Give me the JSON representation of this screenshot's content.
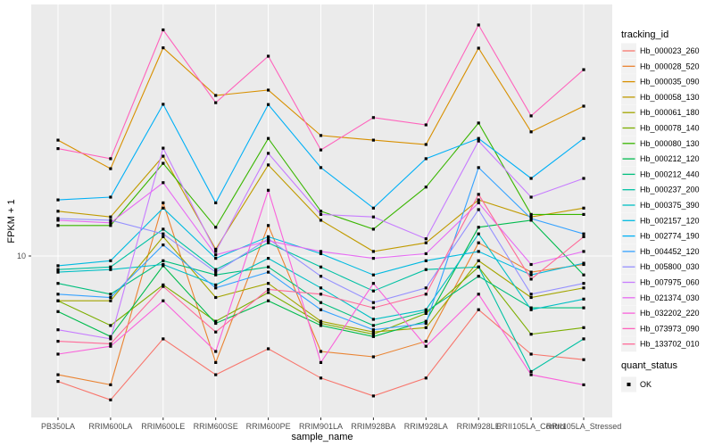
{
  "figure": {
    "background": "#FFFFFF",
    "panel_background": "#EBEBEB",
    "grid_color": "#FFFFFF",
    "axis_text_color": "#4D4D4D",
    "tick_color": "#333333",
    "marker_color": "#000000"
  },
  "axes": {
    "x_title": "sample_name",
    "y_title": "FPKM + 1",
    "y_tick_labels": [
      "10"
    ],
    "y_scale": "log10"
  },
  "legend": {
    "tracking_title": "tracking_id",
    "quant_title": "quant_status",
    "quant_items": [
      {
        "label": "OK",
        "marker": "black-square"
      }
    ],
    "key_fill": "#F2F2F2"
  },
  "chart_data": {
    "type": "line",
    "title": "",
    "xlabel": "sample_name",
    "ylabel": "FPKM + 1",
    "y_scale": "log10",
    "y_breaks": [
      10
    ],
    "grid": "major-on",
    "legend_position": "right",
    "point_marker": "small-black-square",
    "categories": [
      "PB350LA",
      "RRIM600LA",
      "RRIM600LE",
      "RRIM600SE",
      "RRIM600PE",
      "RRIM901LA",
      "RRIM928BA",
      "RRIM928LA",
      "RRIM928LE",
      "RRII105LA_Control",
      "RRII105LA_Stressed"
    ],
    "series": [
      {
        "name": "Hb_000023_260",
        "color": "#F8766D",
        "values": [
          3.4,
          2.9,
          4.9,
          3.6,
          4.5,
          3.5,
          3.0,
          3.5,
          6.3,
          4.3,
          4.1
        ]
      },
      {
        "name": "Hb_000028_520",
        "color": "#EA8331",
        "values": [
          3.6,
          3.3,
          15.8,
          4.0,
          13.0,
          4.4,
          4.2,
          4.8,
          11.2,
          8.7,
          9.3
        ]
      },
      {
        "name": "Hb_000035_090",
        "color": "#D89000",
        "values": [
          27.1,
          21.2,
          60.0,
          39.8,
          41.7,
          28.2,
          27.1,
          26.1,
          59.8,
          29.1,
          36.3
        ]
      },
      {
        "name": "Hb_000058_130",
        "color": "#C09B00",
        "values": [
          14.7,
          14.0,
          23.6,
          10.6,
          21.9,
          13.6,
          10.4,
          11.2,
          16.2,
          14.0,
          15.1
        ]
      },
      {
        "name": "Hb_000061_180",
        "color": "#A3A500",
        "values": [
          6.8,
          6.8,
          11.8,
          7.0,
          7.9,
          5.7,
          5.2,
          5.4,
          9.6,
          7.0,
          7.6
        ]
      },
      {
        "name": "Hb_000078_140",
        "color": "#7CAE00",
        "values": [
          6.8,
          5.5,
          7.8,
          5.7,
          7.3,
          5.6,
          5.1,
          6.1,
          9.1,
          5.1,
          5.4
        ]
      },
      {
        "name": "Hb_000080_130",
        "color": "#39B600",
        "values": [
          13.0,
          13.0,
          22.2,
          12.8,
          27.5,
          14.7,
          12.6,
          18.1,
          31.4,
          14.3,
          14.3
        ]
      },
      {
        "name": "Hb_000212_120",
        "color": "#00BB4E",
        "values": [
          6.2,
          5.0,
          9.2,
          5.6,
          6.8,
          5.5,
          5.0,
          5.7,
          12.8,
          13.6,
          8.5
        ]
      },
      {
        "name": "Hb_000212_440",
        "color": "#00BF7D",
        "values": [
          7.9,
          7.2,
          9.6,
          8.5,
          9.1,
          6.7,
          5.5,
          6.2,
          8.4,
          6.4,
          6.4
        ]
      },
      {
        "name": "Hb_000237_200",
        "color": "#00C1A3",
        "values": [
          8.9,
          9.1,
          12.6,
          8.9,
          11.2,
          9.1,
          7.4,
          8.9,
          9.1,
          3.7,
          4.9
        ]
      },
      {
        "name": "Hb_000375_390",
        "color": "#00BFC4",
        "values": [
          8.7,
          8.9,
          9.3,
          7.8,
          9.8,
          7.6,
          5.8,
          6.3,
          12.1,
          6.3,
          6.9
        ]
      },
      {
        "name": "Hb_002157_120",
        "color": "#00BAE0",
        "values": [
          9.2,
          9.6,
          15.1,
          9.8,
          11.8,
          10.2,
          8.5,
          9.6,
          10.4,
          8.5,
          9.4
        ]
      },
      {
        "name": "Hb_002774_190",
        "color": "#00B0F6",
        "values": [
          16.2,
          16.6,
          36.9,
          15.8,
          36.8,
          21.4,
          15.1,
          23.1,
          27.5,
          19.5,
          27.5
        ]
      },
      {
        "name": "Hb_004452_120",
        "color": "#35A2FF",
        "values": [
          7.2,
          7.0,
          11.0,
          7.6,
          8.7,
          6.3,
          5.3,
          5.6,
          21.4,
          13.8,
          12.1
        ]
      },
      {
        "name": "Hb_005800_030",
        "color": "#9590FF",
        "values": [
          13.8,
          13.6,
          12.1,
          8.7,
          11.6,
          8.4,
          6.7,
          7.6,
          14.9,
          7.2,
          7.9
        ]
      },
      {
        "name": "Hb_007975_060",
        "color": "#C77CFF",
        "values": [
          5.3,
          4.9,
          25.3,
          10.4,
          24.2,
          14.3,
          14.0,
          11.6,
          26.9,
          16.6,
          19.5
        ]
      },
      {
        "name": "Hb_021374_030",
        "color": "#E76BF3",
        "values": [
          13.6,
          13.3,
          18.8,
          10.1,
          11.4,
          10.4,
          9.8,
          10.2,
          15.8,
          9.3,
          10.4
        ]
      },
      {
        "name": "Hb_032202_220",
        "color": "#FA62DB",
        "values": [
          4.3,
          4.6,
          6.8,
          4.4,
          17.6,
          4.0,
          7.9,
          4.6,
          7.2,
          3.6,
          3.3
        ]
      },
      {
        "name": "Hb_073973_090",
        "color": "#FF62BC",
        "values": [
          25.2,
          23.1,
          70.0,
          37.4,
          55.8,
          24.9,
          32.9,
          30.9,
          73.0,
          33.4,
          49.7
        ]
      },
      {
        "name": "Hb_133702_010",
        "color": "#FF6A98",
        "values": [
          4.8,
          4.7,
          7.7,
          5.2,
          7.5,
          7.2,
          6.4,
          7.2,
          17.0,
          8.2,
          11.8
        ]
      }
    ]
  }
}
